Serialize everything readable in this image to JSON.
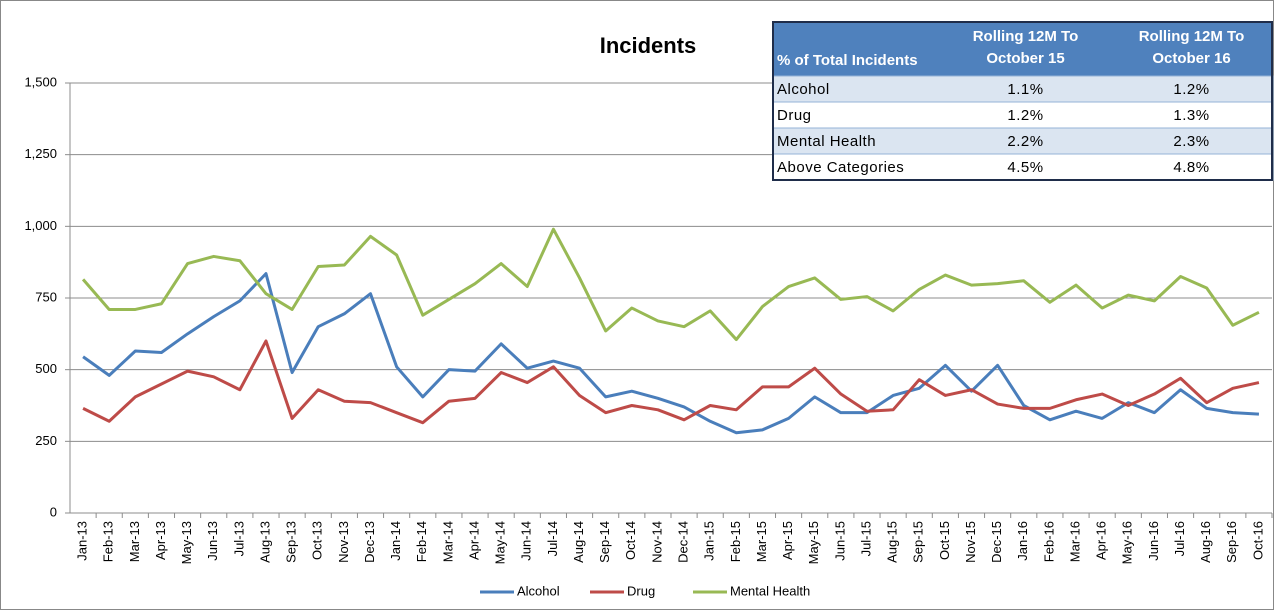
{
  "chart_data": {
    "type": "line",
    "title": "Incidents",
    "categories": [
      "Jan-13",
      "Feb-13",
      "Mar-13",
      "Apr-13",
      "May-13",
      "Jun-13",
      "Jul-13",
      "Aug-13",
      "Sep-13",
      "Oct-13",
      "Nov-13",
      "Dec-13",
      "Jan-14",
      "Feb-14",
      "Mar-14",
      "Apr-14",
      "May-14",
      "Jun-14",
      "Jul-14",
      "Aug-14",
      "Sep-14",
      "Oct-14",
      "Nov-14",
      "Dec-14",
      "Jan-15",
      "Feb-15",
      "Mar-15",
      "Apr-15",
      "May-15",
      "Jun-15",
      "Jul-15",
      "Aug-15",
      "Sep-15",
      "Oct-15",
      "Nov-15",
      "Dec-15",
      "Jan-16",
      "Feb-16",
      "Mar-16",
      "Apr-16",
      "May-16",
      "Jun-16",
      "Jul-16",
      "Aug-16",
      "Sep-16",
      "Oct-16"
    ],
    "series": [
      {
        "name": "Alcohol",
        "color": "#4a7ebb",
        "values": [
          545,
          480,
          565,
          560,
          625,
          685,
          740,
          835,
          490,
          650,
          695,
          765,
          510,
          405,
          500,
          495,
          590,
          505,
          530,
          505,
          405,
          425,
          400,
          370,
          320,
          280,
          290,
          330,
          405,
          350,
          350,
          410,
          435,
          515,
          425,
          515,
          375,
          325,
          355,
          330,
          385,
          350,
          430,
          365,
          350,
          345
        ]
      },
      {
        "name": "Drug",
        "color": "#be4b48",
        "values": [
          365,
          320,
          405,
          450,
          495,
          475,
          430,
          600,
          330,
          430,
          390,
          385,
          350,
          315,
          390,
          400,
          490,
          455,
          510,
          410,
          350,
          375,
          360,
          325,
          375,
          360,
          440,
          440,
          505,
          415,
          355,
          360,
          465,
          410,
          430,
          380,
          365,
          365,
          395,
          415,
          375,
          415,
          470,
          385,
          435,
          455
        ]
      },
      {
        "name": "Mental Health",
        "color": "#98b954",
        "values": [
          815,
          710,
          710,
          730,
          870,
          895,
          880,
          765,
          710,
          860,
          865,
          965,
          900,
          690,
          745,
          800,
          870,
          790,
          990,
          820,
          635,
          715,
          670,
          650,
          705,
          605,
          720,
          790,
          820,
          745,
          755,
          705,
          780,
          830,
          795,
          800,
          810,
          735,
          795,
          715,
          760,
          740,
          825,
          785,
          655,
          700
        ]
      }
    ],
    "ylim": [
      0,
      1500
    ],
    "yticks": [
      0,
      250,
      500,
      750,
      {
        "value": 1000,
        "label": "1,000"
      },
      {
        "value": 1250,
        "label": "1,250"
      },
      {
        "value": 1500,
        "label": "1,500"
      }
    ],
    "grid": true,
    "legend": "bottom",
    "table": {
      "header": [
        [
          "% of Total Incidents"
        ],
        [
          "Rolling 12M To",
          "October 15"
        ],
        [
          "Rolling 12M To",
          "October 16"
        ]
      ],
      "rows": [
        [
          "Alcohol",
          "1.1%",
          "1.2%"
        ],
        [
          "Drug",
          "1.2%",
          "1.3%"
        ],
        [
          "Mental Health",
          "2.2%",
          "2.3%"
        ],
        [
          "Above Categories",
          "4.5%",
          "4.8%"
        ]
      ]
    }
  }
}
